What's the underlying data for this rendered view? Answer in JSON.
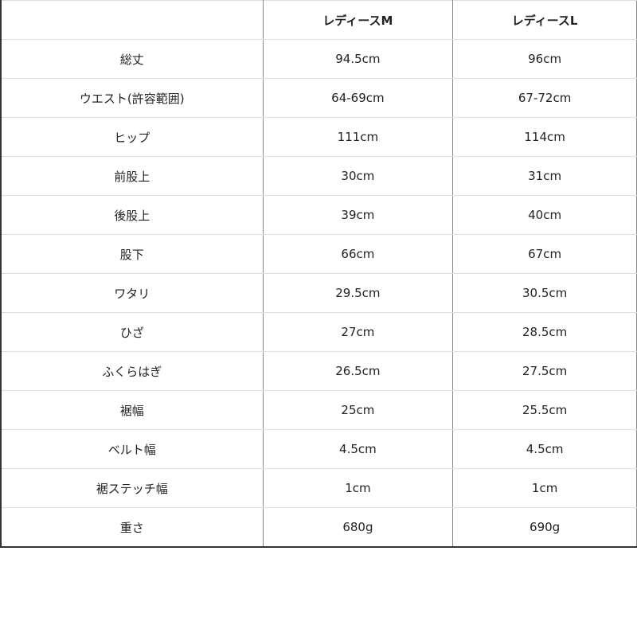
{
  "header": {
    "label": "",
    "col_m": "レディースM",
    "col_l": "レディースL"
  },
  "rows": [
    {
      "label": "総丈",
      "m": "94.5cm",
      "l": "96cm"
    },
    {
      "label": "ウエスト(許容範囲)",
      "m": "64-69cm",
      "l": "67-72cm"
    },
    {
      "label": "ヒップ",
      "m": "111cm",
      "l": "114cm"
    },
    {
      "label": "前股上",
      "m": "30cm",
      "l": "31cm"
    },
    {
      "label": "後股上",
      "m": "39cm",
      "l": "40cm"
    },
    {
      "label": "股下",
      "m": "66cm",
      "l": "67cm"
    },
    {
      "label": "ワタリ",
      "m": "29.5cm",
      "l": "30.5cm"
    },
    {
      "label": "ひざ",
      "m": "27cm",
      "l": "28.5cm"
    },
    {
      "label": "ふくらはぎ",
      "m": "26.5cm",
      "l": "27.5cm"
    },
    {
      "label": "裾幅",
      "m": "25cm",
      "l": "25.5cm"
    },
    {
      "label": "ベルト幅",
      "m": "4.5cm",
      "l": "4.5cm"
    },
    {
      "label": "裾ステッチ幅",
      "m": "1cm",
      "l": "1cm"
    },
    {
      "label": "重さ",
      "m": "680g",
      "l": "690g"
    }
  ]
}
